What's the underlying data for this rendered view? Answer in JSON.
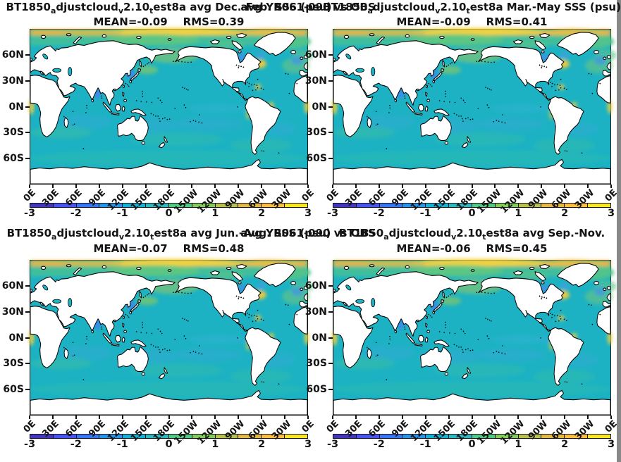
{
  "chart_data": {
    "type": "heatmap",
    "description": "Four-panel seasonal global sea-surface salinity bias maps (model minus observations), equirectangular 0E-360E, 90N-90S, parula colormap",
    "panels": [
      {
        "title": "BT1850_adjustcloud_v2.10_test8a avg Dec.-Feb. SSS (psu)",
        "mean": -0.09,
        "rms": 0.39
      },
      {
        "title": "BT1850_adjustcloud_v2.10_test8a Mar.-May SSS (psu)",
        "mean": -0.09,
        "rms": 0.41
      },
      {
        "title": "BT1850_adjustcloud_v2.10_test8a avg Jun.-Aug. SSS (psu)",
        "mean": -0.07,
        "rms": 0.48
      },
      {
        "title": "BT1850_adjustcloud_v2.10_test8a avg Sep.-Nov.",
        "mean": -0.06,
        "rms": 0.45
      }
    ],
    "overlay_text": "avg YR061-090 vs OBS",
    "colorbar": {
      "min": -3,
      "max": 3,
      "ticks": [
        -3,
        -2,
        -1,
        0,
        1,
        2,
        3
      ],
      "colormap": "parula",
      "n_segments": 12,
      "position": "horizontal below each panel"
    },
    "x_ticks": [
      "0E",
      "30E",
      "60E",
      "90E",
      "120E",
      "150E",
      "180E",
      "150W",
      "120W",
      "90W",
      "60W",
      "30W",
      "0E"
    ],
    "y_ticks": [
      "60N",
      "30N",
      "0N",
      "30S",
      "60S"
    ],
    "grid": false,
    "legend": false
  },
  "panels": [
    {
      "title_parts": [
        {
          "t": "BT1850"
        },
        {
          "s": "a"
        },
        {
          "t": "djustcloud"
        },
        {
          "s": "v"
        },
        {
          "t": "2.10"
        },
        {
          "s": "t"
        },
        {
          "t": "est8a avg Dec.-Feb. SSS (psu)"
        }
      ],
      "mean": "MEAN=-0.09",
      "rms": "RMS=0.39"
    },
    {
      "title_parts": [
        {
          "t": "BT1850"
        },
        {
          "s": "a"
        },
        {
          "t": "djustcloud"
        },
        {
          "s": "v"
        },
        {
          "t": "2.10"
        },
        {
          "s": "t"
        },
        {
          "t": "est8a Mar.-May SSS (psu)"
        }
      ],
      "mean": "MEAN=-0.09",
      "rms": "RMS=0.41"
    },
    {
      "title_parts": [
        {
          "t": "BT1850"
        },
        {
          "s": "a"
        },
        {
          "t": "djustcloud"
        },
        {
          "s": "v"
        },
        {
          "t": "2.10"
        },
        {
          "s": "t"
        },
        {
          "t": "est8a avg Jun.-Aug. SSS (psu)"
        }
      ],
      "mean": "MEAN=-0.07",
      "rms": "RMS=0.48"
    },
    {
      "title_parts": [
        {
          "t": "BT1850"
        },
        {
          "s": "a"
        },
        {
          "t": "djustcloud"
        },
        {
          "s": "v"
        },
        {
          "t": "2.10"
        },
        {
          "s": "t"
        },
        {
          "t": "est8a avg Sep.-Nov."
        }
      ],
      "mean": "MEAN=-0.06",
      "rms": "RMS=0.45"
    }
  ],
  "overlays": {
    "row1": "avg YR061-090 vs OBS",
    "row2": "avg YR061-090 vs OBS"
  },
  "axes": {
    "x_labels": [
      "0E",
      "30E",
      "60E",
      "90E",
      "120E",
      "150E",
      "180E",
      "150W",
      "120W",
      "90W",
      "60W",
      "30W",
      "0E"
    ],
    "y_labels": [
      "60N",
      "30N",
      "0N",
      "30S",
      "60S"
    ]
  },
  "colorbar": {
    "tick_labels": [
      "-3",
      "-2",
      "-1",
      "0",
      "1",
      "2",
      "3"
    ],
    "segment_colors": [
      "#4135c2",
      "#4753f4",
      "#3675f6",
      "#2495ec",
      "#12b1d6",
      "#2bb9c1",
      "#50c982",
      "#81cc59",
      "#b9bf4b",
      "#e3b842",
      "#fdbd3c",
      "#fae61e"
    ]
  },
  "colors": {
    "ocean": "#1cb2c3",
    "land": "#ffffff",
    "coastline": "#000000",
    "text": "#141414",
    "arctic_band": "#edb63c"
  }
}
